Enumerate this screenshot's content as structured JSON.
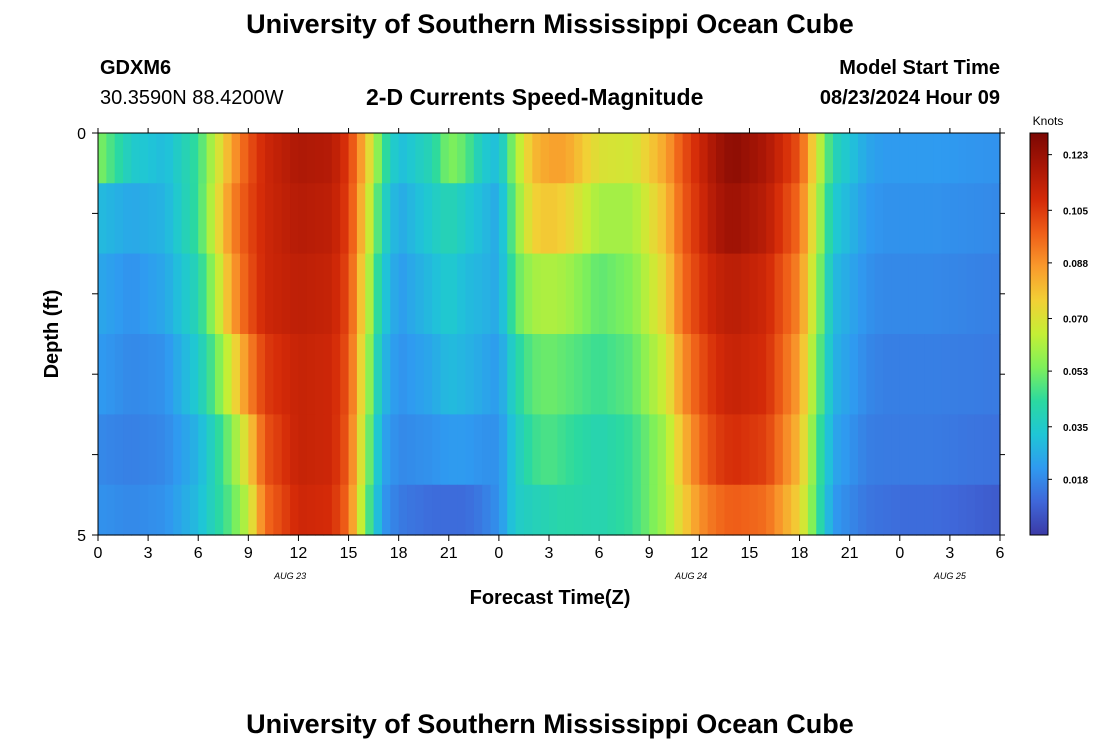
{
  "page": {
    "title": "University of Southern Mississippi Ocean Cube",
    "station_id": "GDXM6",
    "coords": "30.3590N  88.4200W",
    "chart_title": "2-D Currents Speed-Magnitude",
    "model_start_label": "Model Start Time",
    "model_start_value": "08/23/2024 Hour 09",
    "footer_title": "University of Southern Mississippi Ocean Cube"
  },
  "chart_data": {
    "type": "heatmap",
    "title": "2-D Currents Speed-Magnitude",
    "xlabel": "Forecast Time(Z)",
    "ylabel": "Depth (ft)",
    "x_tick_labels": [
      "0",
      "3",
      "6",
      "9",
      "12",
      "15",
      "18",
      "21",
      "0",
      "3",
      "6",
      "9",
      "12",
      "15",
      "18",
      "21",
      "0",
      "3",
      "6"
    ],
    "x_date_labels": [
      {
        "label": "AUG 23",
        "hour": 11.5
      },
      {
        "label": "AUG 24",
        "hour": 35.5
      },
      {
        "label": "AUG 25",
        "hour": 51
      }
    ],
    "xlim_hours": [
      0,
      54
    ],
    "y_tick_labels": [
      "0",
      "5"
    ],
    "ylim_ft": [
      0,
      5
    ],
    "depth_bins_ft": [
      0.25,
      1.0,
      2.0,
      3.0,
      4.0,
      4.75
    ],
    "colorbar": {
      "label": "Knots",
      "ticks": [
        0.018,
        0.035,
        0.053,
        0.07,
        0.088,
        0.105,
        0.123
      ],
      "tick_labels": [
        "0.018",
        "0.035",
        "0.053",
        "0.070",
        "0.088",
        "0.105",
        "0.123"
      ],
      "range": [
        0.0,
        0.13
      ],
      "colors": [
        "#3b3aa6",
        "#3f67d9",
        "#2f9af0",
        "#1fc6d6",
        "#2bd9a0",
        "#7ef05a",
        "#c4ef35",
        "#f2d035",
        "#f99a2c",
        "#ef5f18",
        "#d42a08",
        "#a81606",
        "#7b0703"
      ]
    },
    "grid": false,
    "series": [
      {
        "depth_ft": 0.25,
        "hours": [
          0,
          2,
          4,
          6,
          7,
          8,
          9,
          10,
          12,
          14,
          15,
          16,
          17,
          18,
          20,
          21,
          22,
          23,
          24,
          25,
          26,
          27,
          28,
          30,
          32,
          34,
          35,
          36,
          37,
          38,
          40,
          42,
          43,
          44,
          46,
          47,
          48,
          50,
          54
        ],
        "values": [
          0.055,
          0.035,
          0.03,
          0.045,
          0.065,
          0.085,
          0.1,
          0.11,
          0.118,
          0.116,
          0.105,
          0.08,
          0.048,
          0.03,
          0.04,
          0.055,
          0.05,
          0.035,
          0.03,
          0.06,
          0.08,
          0.085,
          0.085,
          0.07,
          0.068,
          0.085,
          0.1,
          0.11,
          0.12,
          0.126,
          0.118,
          0.1,
          0.07,
          0.04,
          0.025,
          0.022,
          0.022,
          0.022,
          0.02
        ]
      },
      {
        "depth_ft": 1.0,
        "hours": [
          0,
          2,
          4,
          6,
          7,
          8,
          9,
          10,
          12,
          14,
          15,
          16,
          17,
          18,
          20,
          21,
          22,
          23,
          24,
          25,
          26,
          27,
          28,
          30,
          32,
          34,
          35,
          36,
          37,
          38,
          40,
          42,
          43,
          44,
          46,
          47,
          48,
          50,
          54
        ],
        "values": [
          0.03,
          0.025,
          0.028,
          0.045,
          0.068,
          0.09,
          0.102,
          0.11,
          0.116,
          0.114,
          0.104,
          0.075,
          0.04,
          0.025,
          0.035,
          0.04,
          0.035,
          0.03,
          0.025,
          0.055,
          0.075,
          0.078,
          0.075,
          0.06,
          0.06,
          0.08,
          0.098,
          0.108,
          0.118,
          0.122,
          0.115,
          0.095,
          0.065,
          0.035,
          0.022,
          0.02,
          0.02,
          0.02,
          0.018
        ]
      },
      {
        "depth_ft": 2.0,
        "hours": [
          0,
          2,
          4,
          6,
          7,
          8,
          9,
          10,
          12,
          14,
          15,
          16,
          17,
          18,
          20,
          21,
          22,
          23,
          24,
          25,
          26,
          27,
          28,
          30,
          32,
          34,
          35,
          36,
          37,
          38,
          40,
          42,
          43,
          44,
          46,
          47,
          48,
          50,
          54
        ],
        "values": [
          0.025,
          0.02,
          0.025,
          0.04,
          0.06,
          0.085,
          0.1,
          0.11,
          0.114,
          0.112,
          0.102,
          0.07,
          0.035,
          0.022,
          0.03,
          0.035,
          0.03,
          0.028,
          0.025,
          0.05,
          0.06,
          0.062,
          0.06,
          0.05,
          0.055,
          0.075,
          0.095,
          0.105,
          0.112,
          0.115,
          0.11,
          0.09,
          0.06,
          0.03,
          0.02,
          0.018,
          0.018,
          0.018,
          0.016
        ]
      },
      {
        "depth_ft": 3.0,
        "hours": [
          0,
          2,
          4,
          6,
          7,
          8,
          9,
          10,
          12,
          14,
          15,
          16,
          17,
          18,
          20,
          21,
          22,
          23,
          24,
          25,
          26,
          27,
          28,
          30,
          32,
          34,
          35,
          36,
          37,
          38,
          40,
          42,
          43,
          44,
          46,
          47,
          48,
          50,
          54
        ],
        "values": [
          0.022,
          0.018,
          0.02,
          0.035,
          0.05,
          0.07,
          0.09,
          0.105,
          0.112,
          0.11,
          0.1,
          0.065,
          0.03,
          0.02,
          0.025,
          0.03,
          0.028,
          0.025,
          0.022,
          0.04,
          0.05,
          0.052,
          0.05,
          0.045,
          0.05,
          0.068,
          0.088,
          0.1,
          0.108,
          0.112,
          0.108,
          0.085,
          0.055,
          0.028,
          0.018,
          0.016,
          0.016,
          0.016,
          0.015
        ]
      },
      {
        "depth_ft": 4.0,
        "hours": [
          0,
          2,
          4,
          6,
          7,
          8,
          9,
          10,
          12,
          14,
          15,
          16,
          17,
          18,
          20,
          21,
          22,
          23,
          24,
          25,
          26,
          27,
          28,
          30,
          32,
          34,
          35,
          36,
          37,
          38,
          40,
          42,
          43,
          44,
          46,
          47,
          48,
          50,
          54
        ],
        "values": [
          0.018,
          0.016,
          0.018,
          0.028,
          0.04,
          0.055,
          0.075,
          0.1,
          0.112,
          0.11,
          0.098,
          0.06,
          0.025,
          0.018,
          0.02,
          0.022,
          0.022,
          0.02,
          0.02,
          0.035,
          0.045,
          0.048,
          0.045,
          0.04,
          0.045,
          0.06,
          0.08,
          0.095,
          0.104,
          0.108,
          0.104,
          0.08,
          0.05,
          0.025,
          0.016,
          0.015,
          0.015,
          0.015,
          0.013
        ]
      },
      {
        "depth_ft": 4.75,
        "hours": [
          0,
          2,
          4,
          6,
          7,
          8,
          9,
          10,
          12,
          14,
          15,
          16,
          17,
          18,
          20,
          21,
          22,
          23,
          24,
          25,
          26,
          27,
          28,
          30,
          32,
          34,
          35,
          36,
          37,
          38,
          40,
          42,
          43,
          44,
          46,
          47,
          48,
          50,
          54
        ],
        "values": [
          0.02,
          0.018,
          0.02,
          0.03,
          0.04,
          0.05,
          0.065,
          0.095,
          0.11,
          0.108,
          0.095,
          0.055,
          0.022,
          0.015,
          0.012,
          0.012,
          0.012,
          0.015,
          0.02,
          0.035,
          0.038,
          0.04,
          0.042,
          0.04,
          0.045,
          0.06,
          0.075,
          0.088,
          0.095,
          0.098,
          0.095,
          0.075,
          0.048,
          0.022,
          0.014,
          0.013,
          0.012,
          0.012,
          0.008
        ]
      }
    ]
  }
}
